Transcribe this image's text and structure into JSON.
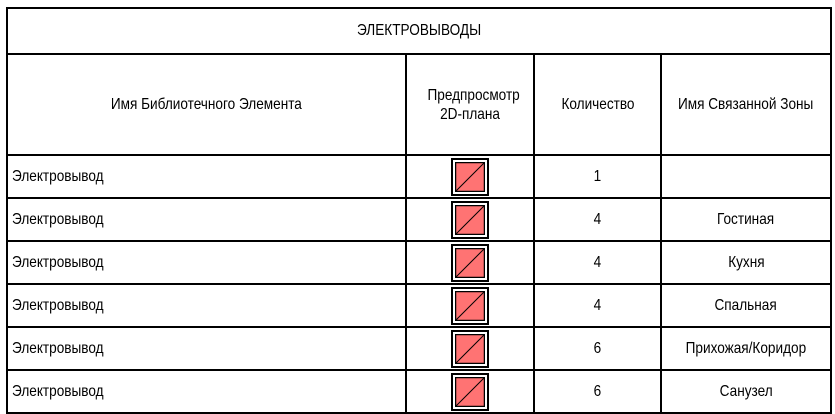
{
  "title": "ЭЛЕКТРОВЫВОДЫ",
  "columns": [
    "Имя Библиотечного Элемента",
    "Предпросмотр 2D-плана",
    "Количество",
    "Имя Связанной Зоны"
  ],
  "colors": {
    "preview_fill": "#ff7373",
    "border": "#000000"
  },
  "rows": [
    {
      "name": "Электровывод",
      "preview_icon": "outlet-symbol-icon",
      "quantity": "1",
      "zone": ""
    },
    {
      "name": "Электровывод",
      "preview_icon": "outlet-symbol-icon",
      "quantity": "4",
      "zone": "Гостиная"
    },
    {
      "name": "Электровывод",
      "preview_icon": "outlet-symbol-icon",
      "quantity": "4",
      "zone": "Кухня"
    },
    {
      "name": "Электровывод",
      "preview_icon": "outlet-symbol-icon",
      "quantity": "4",
      "zone": "Спальная"
    },
    {
      "name": "Электровывод",
      "preview_icon": "outlet-symbol-icon",
      "quantity": "6",
      "zone": "Прихожая/Коридор"
    },
    {
      "name": "Электровывод",
      "preview_icon": "outlet-symbol-icon",
      "quantity": "6",
      "zone": "Санузел"
    }
  ]
}
